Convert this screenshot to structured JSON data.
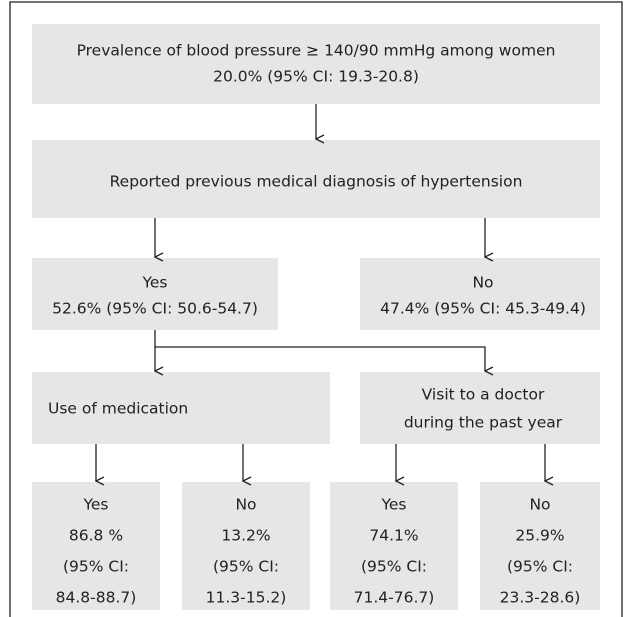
{
  "nodes": [
    {
      "lines": [
        "Prevalence of blood pressure ≥ 140/90 mmHg among women",
        "20.0% (95% CI: 19.3-20.8)"
      ]
    },
    {
      "lines": [
        "Reported previous medical diagnosis of hypertension"
      ]
    },
    {
      "lines": [
        "Yes",
        "52.6% (95% CI: 50.6-54.7)"
      ]
    },
    {
      "lines": [
        "No",
        "47.4% (95% CI: 45.3-49.4)"
      ]
    },
    {
      "lines": [
        "Use of medication"
      ]
    },
    {
      "lines": [
        "Visit to a doctor",
        "during the past year"
      ]
    },
    {
      "lines": [
        "Yes",
        "86.8 %",
        "(95% CI:",
        "84.8-88.7)"
      ]
    },
    {
      "lines": [
        "No",
        "13.2%",
        "(95% CI:",
        "11.3-15.2)"
      ]
    },
    {
      "lines": [
        "Yes",
        "74.1%",
        "(95% CI:",
        "71.4-76.7)"
      ]
    },
    {
      "lines": [
        "No",
        "25.9%",
        "(95% CI:",
        "23.3-28.6)"
      ]
    }
  ]
}
